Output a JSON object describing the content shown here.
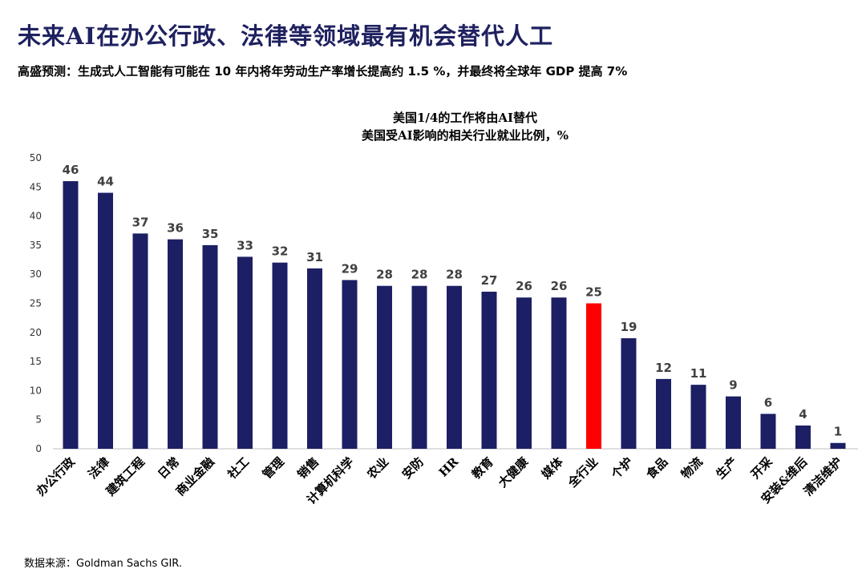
{
  "header": {
    "title": "未来AI在办公行政、法律等领域最有机会替代人工",
    "subtitle": "高盛预测：生成式人工智能有可能在 10 年内将年劳动生产率增长提高约 1.5 %，并最终将全球年 GDP 提高 7%"
  },
  "footer": {
    "source": "数据来源：Goldman Sachs GIR."
  },
  "colors": {
    "title": "#1f2160",
    "bar": "#1c1f64",
    "highlight": "#ff0000"
  },
  "chart_data": {
    "type": "bar",
    "title": "美国1/4的工作将由AI替代",
    "subtitle": "美国受AI影响的相关行业就业比例，%",
    "categories": [
      "办公行政",
      "法律",
      "建筑工程",
      "日常",
      "商业金融",
      "社工",
      "管理",
      "销售",
      "计算机科学",
      "农业",
      "安防",
      "HR",
      "教育",
      "大健康",
      "媒体",
      "全行业",
      "个护",
      "食品",
      "物流",
      "生产",
      "开采",
      "安装&维后",
      "清洁维护"
    ],
    "values": [
      46,
      44,
      37,
      36,
      35,
      33,
      32,
      31,
      29,
      28,
      28,
      28,
      27,
      26,
      26,
      25,
      19,
      12,
      11,
      9,
      6,
      4,
      1
    ],
    "highlight_category": "全行业",
    "ylim": [
      0,
      50
    ],
    "yticks": [
      0,
      5,
      10,
      15,
      20,
      25,
      30,
      35,
      40,
      45,
      50
    ],
    "grid": false,
    "data_labels": true,
    "xlabel": "",
    "ylabel": ""
  }
}
